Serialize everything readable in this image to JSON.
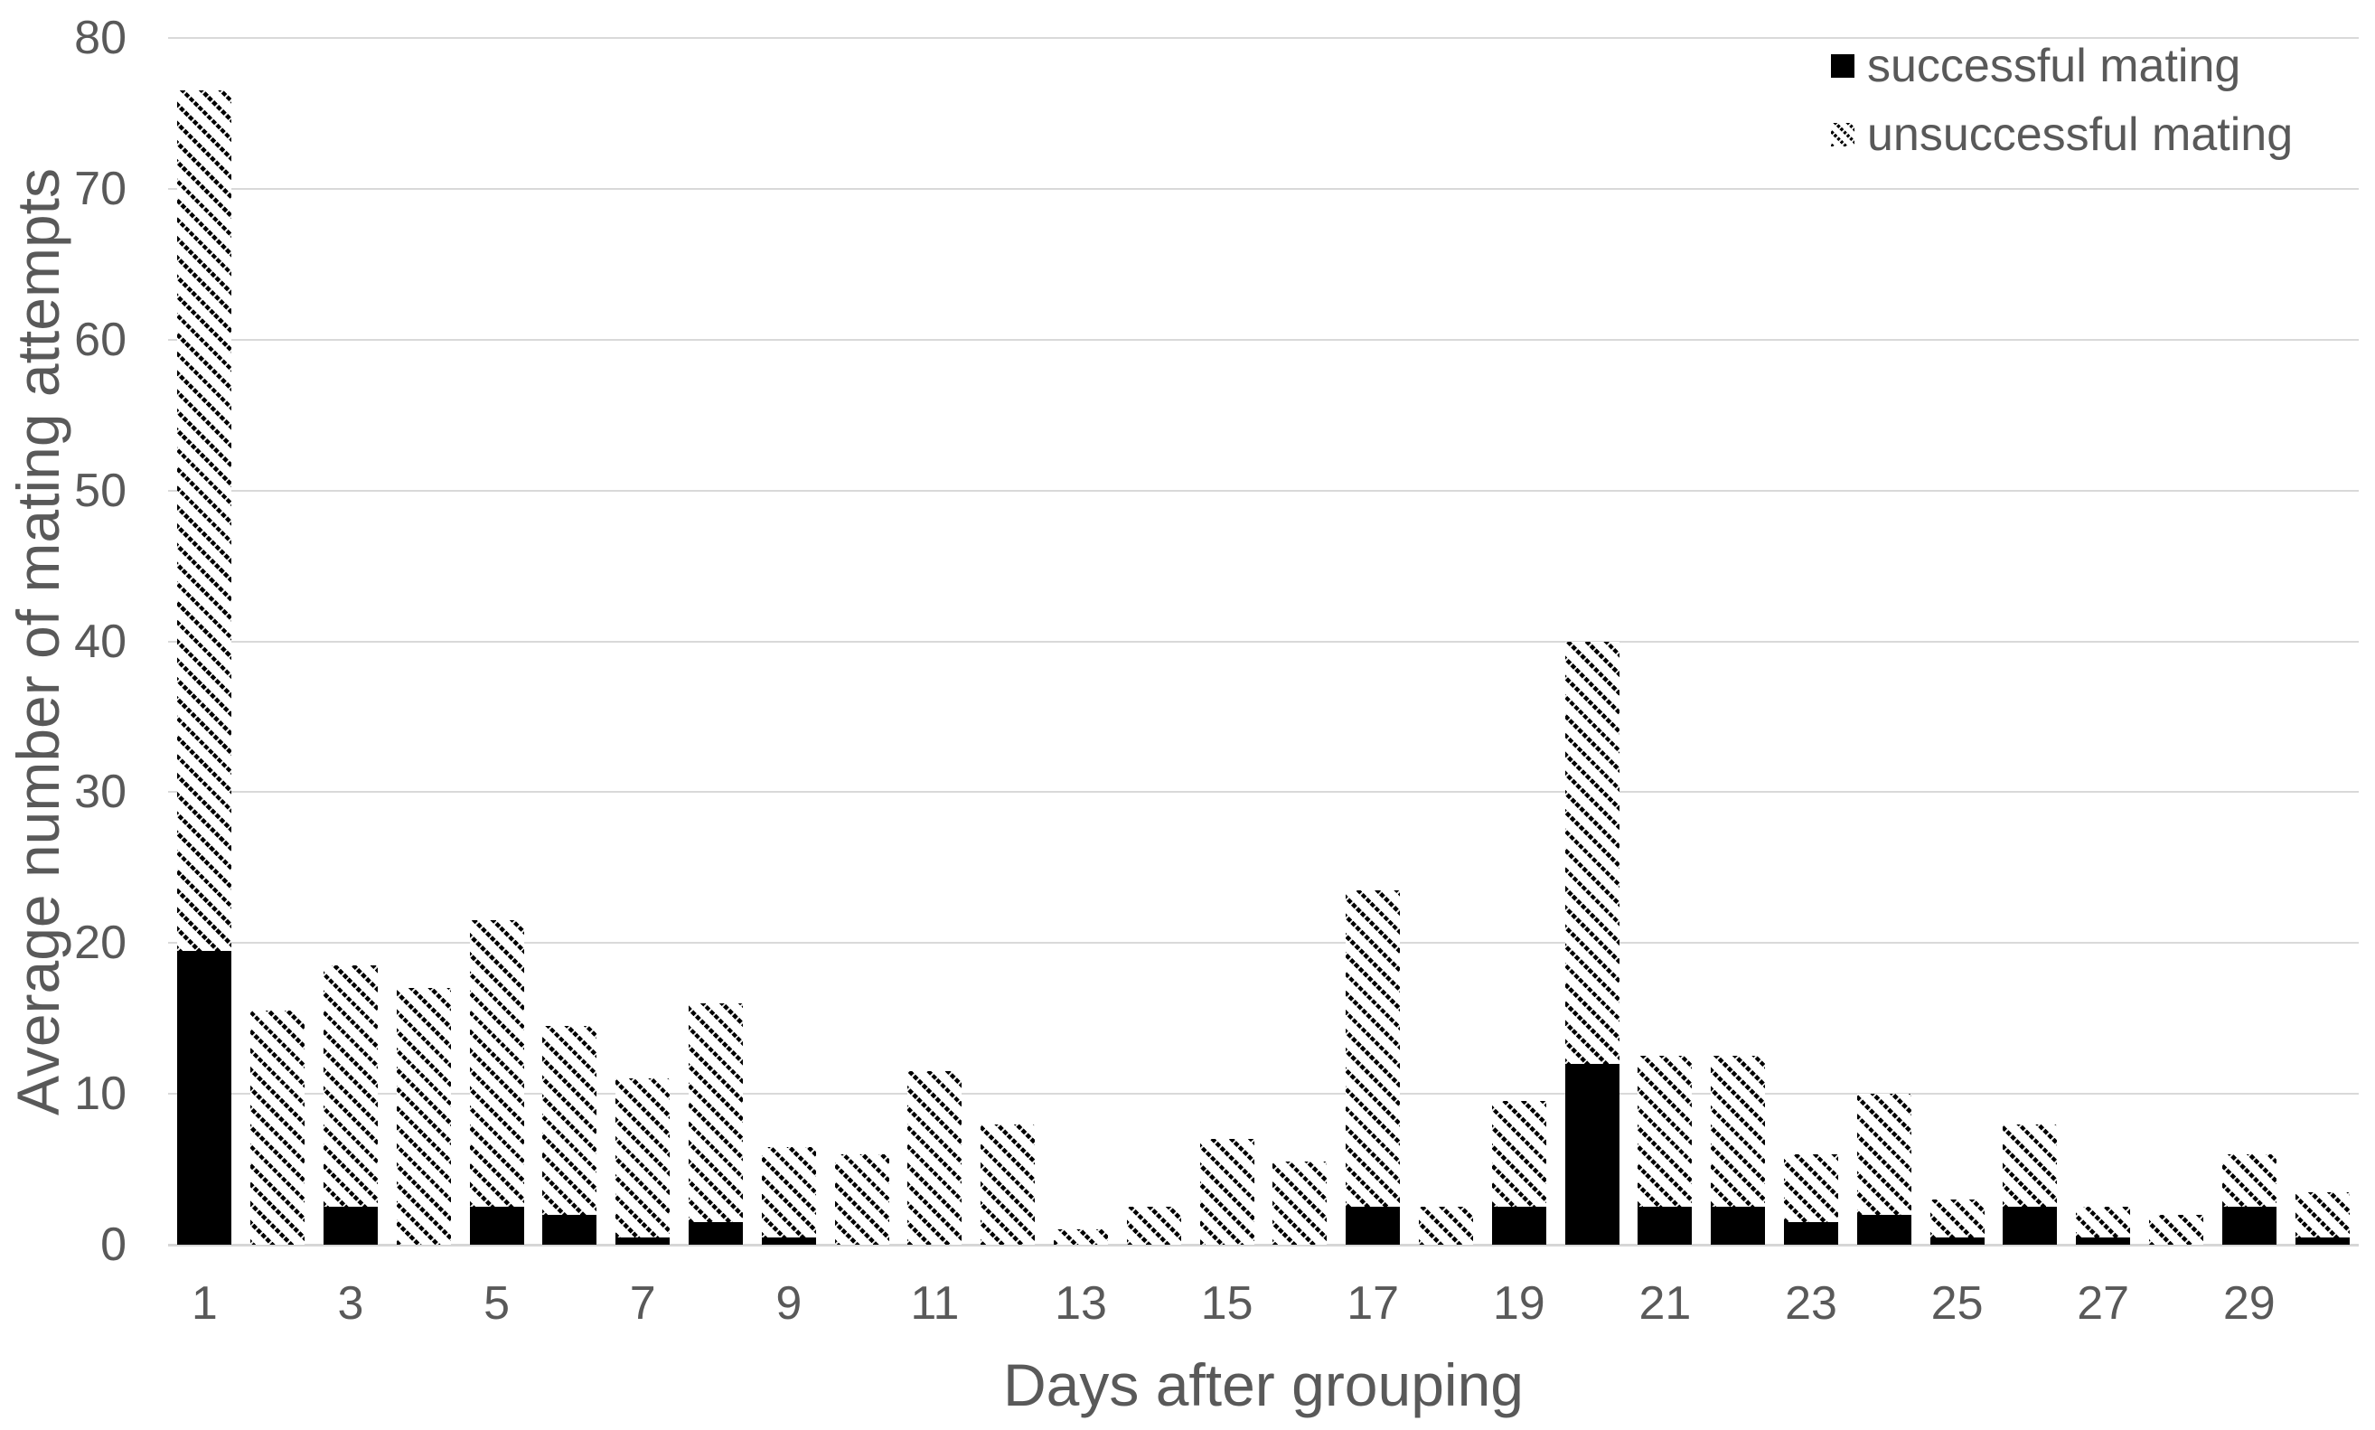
{
  "colors": {
    "bar_fill": "#000000",
    "text": "#595959",
    "gridline": "#D9D9D9",
    "background": "#FFFFFF"
  },
  "chart_data": {
    "type": "bar",
    "stacked": true,
    "title": "",
    "xlabel": "Days after grouping",
    "ylabel": "Average number of mating attempts",
    "categories": [
      1,
      2,
      3,
      4,
      5,
      6,
      7,
      8,
      9,
      10,
      11,
      12,
      13,
      14,
      15,
      16,
      17,
      18,
      19,
      20,
      21,
      22,
      23,
      24,
      25,
      26,
      27,
      28,
      29,
      30
    ],
    "series": [
      {
        "name": "successful mating",
        "pattern": "solid-black",
        "values": [
          19.5,
          0,
          2.5,
          0,
          2.5,
          2,
          0.5,
          1.5,
          0.5,
          0,
          0,
          0,
          0,
          0,
          0,
          0,
          2.5,
          0,
          2.5,
          12,
          2.5,
          2.5,
          1.5,
          2,
          0.5,
          2.5,
          0.5,
          0,
          2.5,
          0.5
        ]
      },
      {
        "name": "unsuccessful mating",
        "pattern": "diagonal-hatch",
        "values": [
          57,
          15.5,
          16,
          17,
          19,
          12.5,
          10.5,
          14.5,
          6,
          6,
          11.5,
          8,
          1,
          2.5,
          7,
          5.5,
          21,
          2.5,
          7,
          28,
          10,
          10,
          4.5,
          8,
          2.5,
          5.5,
          2,
          2,
          3.5,
          3
        ]
      }
    ],
    "totals": [
      76.5,
      15.5,
      18.5,
      17,
      21.5,
      14.5,
      11,
      16,
      6.5,
      6,
      11.5,
      8,
      1,
      2.5,
      7,
      5.5,
      23.5,
      2.5,
      9.5,
      40,
      12.5,
      12.5,
      6,
      10,
      3,
      8,
      2.5,
      2,
      6,
      3.5
    ],
    "yticks": [
      0,
      10,
      20,
      30,
      40,
      50,
      60,
      70,
      80
    ],
    "xticks": [
      1,
      3,
      5,
      7,
      9,
      11,
      13,
      15,
      17,
      19,
      21,
      23,
      25,
      27,
      29
    ],
    "ylim": [
      0,
      80
    ],
    "grid": "horizontal",
    "legend_position": "top-right"
  }
}
